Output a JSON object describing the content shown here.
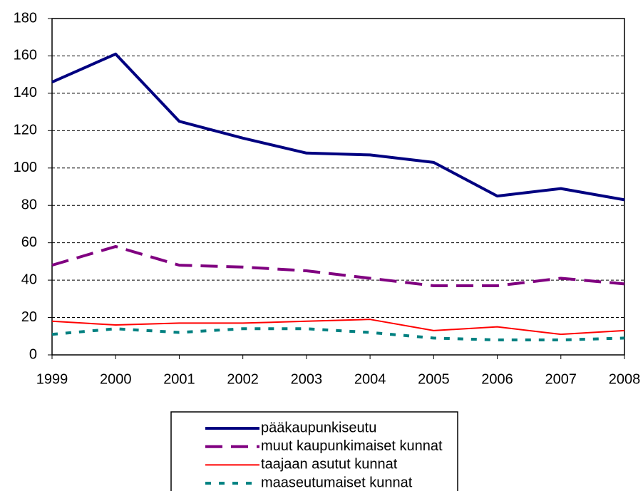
{
  "chart_data": {
    "type": "line",
    "x": [
      1999,
      2000,
      2001,
      2002,
      2003,
      2004,
      2005,
      2006,
      2007,
      2008
    ],
    "xlim": [
      1999,
      2008
    ],
    "xticks": [
      1999,
      2000,
      2001,
      2002,
      2003,
      2004,
      2005,
      2006,
      2007,
      2008
    ],
    "ylim": [
      0,
      180
    ],
    "yticks": [
      0,
      20,
      40,
      60,
      80,
      100,
      120,
      140,
      160,
      180
    ],
    "grid": true,
    "legend": "bottom",
    "series": [
      {
        "name": "pääkaupunkiseutu",
        "color": "#000080",
        "line_style": "solid",
        "values": [
          146,
          161,
          125,
          116,
          108,
          107,
          103,
          85,
          89,
          83
        ]
      },
      {
        "name": "muut kaupunkimaiset kunnat",
        "color": "#800080",
        "line_style": "dashed",
        "values": [
          48,
          58,
          48,
          47,
          45,
          41,
          37,
          37,
          41,
          38
        ]
      },
      {
        "name": "taajaan asutut kunnat",
        "color": "#ff0000",
        "line_style": "thin",
        "values": [
          18,
          16,
          17,
          17,
          18,
          19,
          13,
          15,
          11,
          13
        ]
      },
      {
        "name": "maaseutumaiset kunnat",
        "color": "#008080",
        "line_style": "dotted",
        "values": [
          11,
          14,
          12,
          14,
          14,
          12,
          9,
          8,
          8,
          9
        ]
      }
    ]
  }
}
